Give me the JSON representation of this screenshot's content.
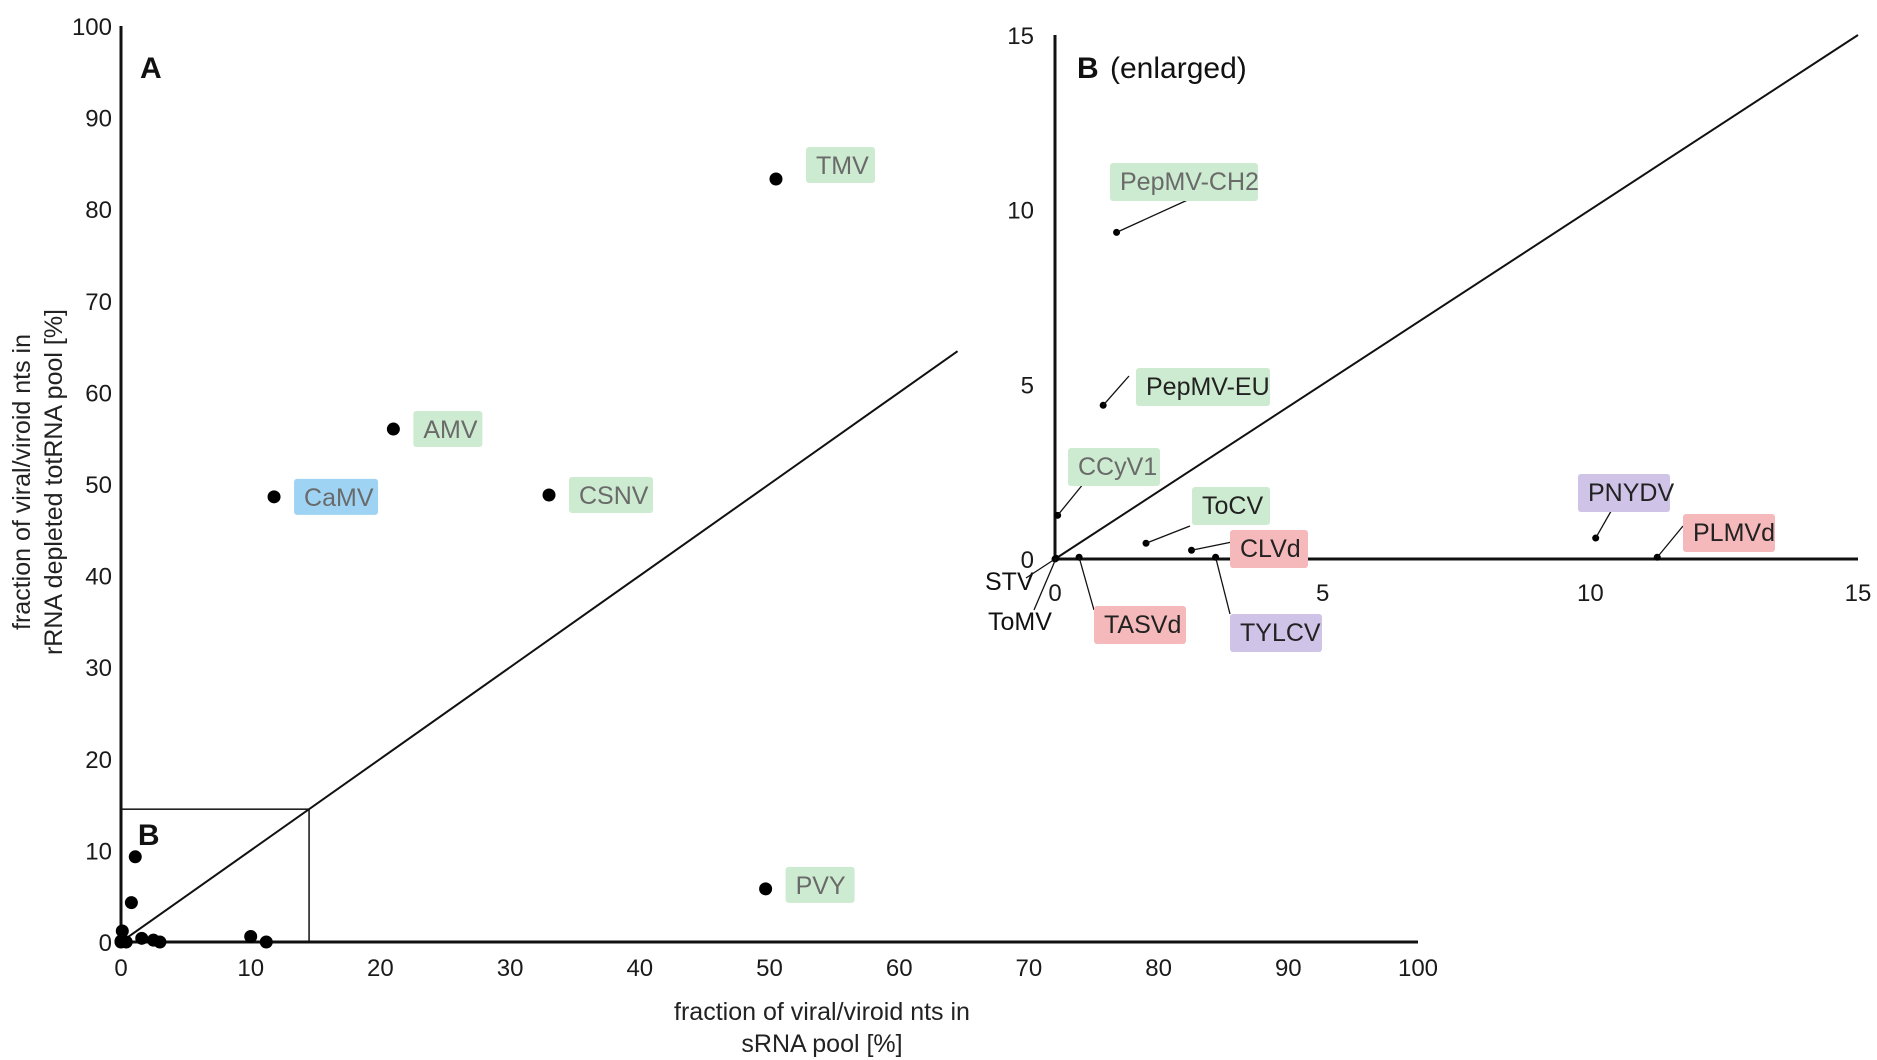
{
  "colors": {
    "plant_virus_rna": "#cdebd0",
    "plant_virus_dna_pararetro": "#9fd3f3",
    "ssdna_virus": "#cfc3e8",
    "viroid": "#f6b9bb",
    "axis": "#111111",
    "point": "#000000"
  },
  "chart_data": [
    {
      "type": "scatter",
      "panel": "A",
      "title": "A",
      "xlabel": [
        "fraction of viral/viroid nts in",
        "sRNA pool [%]"
      ],
      "ylabel": [
        "fraction of viral/viroid nts in",
        "rRNA depleted totRNA pool [%]"
      ],
      "xlim": [
        0,
        100
      ],
      "ylim": [
        0,
        100
      ],
      "x_ticks": [
        "0",
        "10",
        "20",
        "30",
        "40",
        "50",
        "60",
        "70",
        "80",
        "90",
        "100"
      ],
      "y_ticks": [
        "0",
        "10",
        "20",
        "30",
        "40",
        "50",
        "60",
        "70",
        "80",
        "90",
        "100"
      ],
      "diagonal": "y = x",
      "inset_box_label": "B",
      "inset_box_range": [
        0,
        14.5
      ],
      "points": [
        {
          "name": "TMV",
          "x": 50.5,
          "y": 83.3,
          "label": true,
          "color_class": "plant_virus_rna"
        },
        {
          "name": "AMV",
          "x": 21,
          "y": 56,
          "label": true,
          "color_class": "plant_virus_rna"
        },
        {
          "name": "CaMV",
          "x": 11.8,
          "y": 48.6,
          "label": true,
          "color_class": "plant_virus_dna_pararetro"
        },
        {
          "name": "CSNV",
          "x": 33,
          "y": 48.8,
          "label": true,
          "color_class": "plant_virus_rna"
        },
        {
          "name": "PVY",
          "x": 49.7,
          "y": 5.8,
          "label": true,
          "color_class": "plant_virus_rna"
        },
        {
          "name": "PepMV-CH2",
          "x": 1.1,
          "y": 9.3,
          "label": false
        },
        {
          "name": "PepMV-EU",
          "x": 0.8,
          "y": 4.3,
          "label": false
        },
        {
          "name": "CCyV1",
          "x": 0.1,
          "y": 1.2,
          "label": false
        },
        {
          "name": "ToCV",
          "x": 1.6,
          "y": 0.4,
          "label": false
        },
        {
          "name": "CLVd",
          "x": 2.5,
          "y": 0.2,
          "label": false
        },
        {
          "name": "TYLCV",
          "x": 3.0,
          "y": 0.0,
          "label": false
        },
        {
          "name": "TASVd",
          "x": 0.4,
          "y": 0.0,
          "label": false
        },
        {
          "name": "STV",
          "x": 0.0,
          "y": 0.0,
          "label": false
        },
        {
          "name": "ToMV",
          "x": 0.0,
          "y": 0.1,
          "label": false
        },
        {
          "name": "PNYDV",
          "x": 10.0,
          "y": 0.6,
          "label": false
        },
        {
          "name": "PLMVd",
          "x": 11.2,
          "y": 0.0,
          "label": false
        }
      ]
    },
    {
      "type": "scatter",
      "panel": "B",
      "title": "B (enlarged)",
      "title_letter": "B",
      "title_suffix": "(enlarged)",
      "xlim": [
        0,
        15
      ],
      "ylim": [
        0,
        15
      ],
      "x_ticks": [
        "0",
        "5",
        "10",
        "15"
      ],
      "y_ticks": [
        "0",
        "5",
        "10",
        "15"
      ],
      "diagonal": "y = x",
      "points": [
        {
          "name": "PepMV-CH2",
          "x": 1.15,
          "y": 9.35,
          "color_class": "plant_virus_rna"
        },
        {
          "name": "PepMV-EU",
          "x": 0.9,
          "y": 4.4,
          "color_class": "plant_virus_rna"
        },
        {
          "name": "CCyV1",
          "x": 0.05,
          "y": 1.25,
          "color_class": "plant_virus_rna"
        },
        {
          "name": "ToCV",
          "x": 1.7,
          "y": 0.45,
          "color_class": "plant_virus_rna"
        },
        {
          "name": "CLVd",
          "x": 2.55,
          "y": 0.25,
          "color_class": "viroid"
        },
        {
          "name": "TYLCV",
          "x": 3.0,
          "y": 0.05,
          "color_class": "ssdna_virus"
        },
        {
          "name": "TASVd",
          "x": 0.45,
          "y": 0.05,
          "color_class": "viroid"
        },
        {
          "name": "STV",
          "x": 0.0,
          "y": 0.0,
          "color_class": "none"
        },
        {
          "name": "ToMV",
          "x": 0.02,
          "y": 0.02,
          "color_class": "none"
        },
        {
          "name": "PNYDV",
          "x": 10.1,
          "y": 0.6,
          "color_class": "ssdna_virus"
        },
        {
          "name": "PLMVd",
          "x": 11.25,
          "y": 0.05,
          "color_class": "viroid"
        }
      ]
    }
  ]
}
